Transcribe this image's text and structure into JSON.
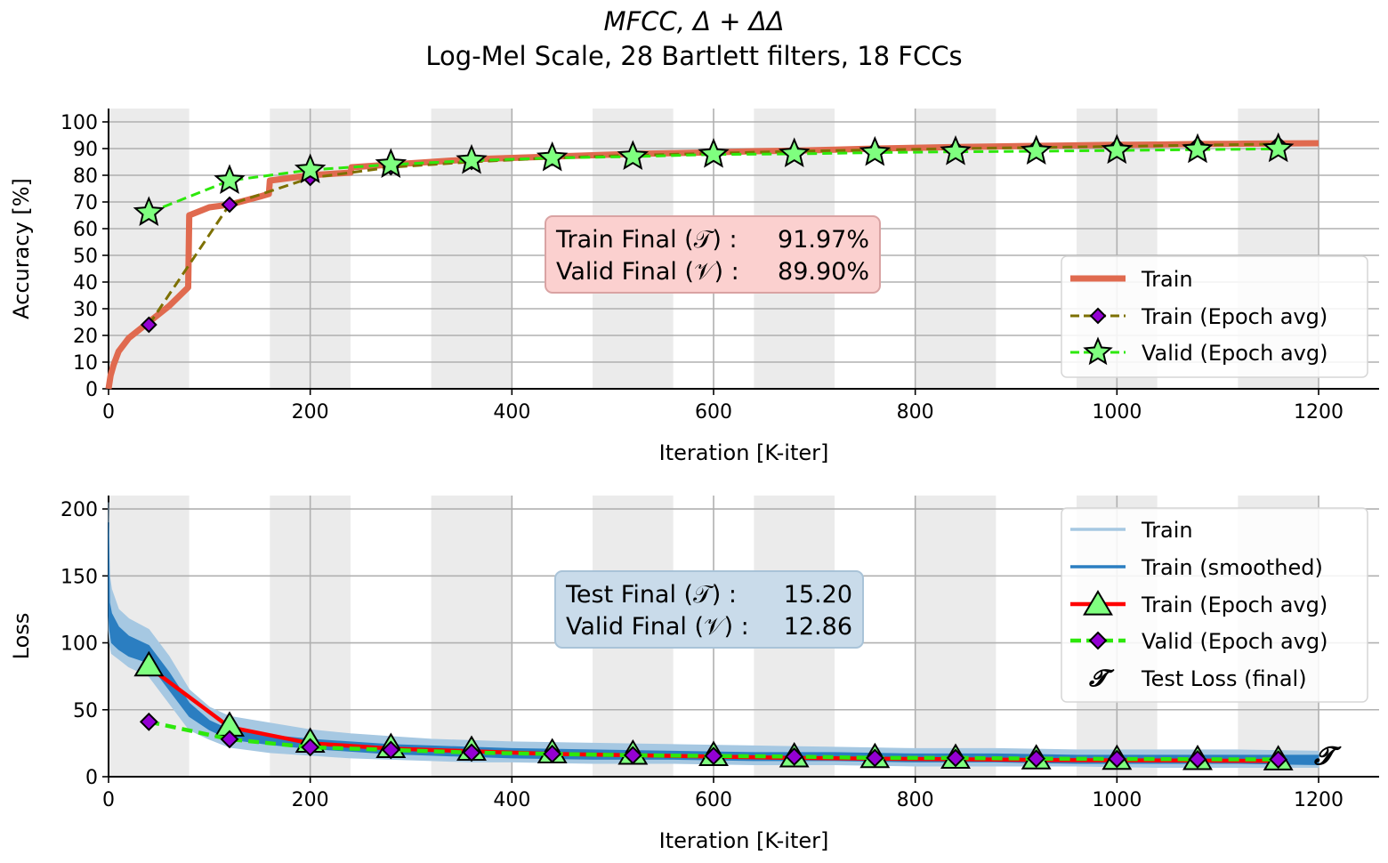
{
  "figure": {
    "title_line1": "MFCC, Δ + ΔΔ",
    "title_line2": "Log-Mel Scale, 28 Bartlett filters, 18 FCCs"
  },
  "chart_data": [
    {
      "type": "line",
      "ylabel": "Accuracy [%]",
      "xlabel": "Iteration [K-iter]",
      "xlim": [
        0,
        1260
      ],
      "ylim": [
        0,
        105
      ],
      "xticks": [
        "0",
        "200",
        "400",
        "600",
        "800",
        "1000",
        "1200"
      ],
      "yticks": [
        "0",
        "10",
        "20",
        "30",
        "40",
        "50",
        "60",
        "70",
        "80",
        "90",
        "100"
      ],
      "grid": true,
      "epoch_length": 80,
      "legend_position": "lower-right",
      "legend": [
        "Train",
        "Train (Epoch avg)",
        "Valid (Epoch avg)"
      ],
      "annotation": {
        "line1_label": "Train Final (𝒯) :",
        "line1_value": "91.97%",
        "line2_label": "Valid Final (𝒱) :",
        "line2_value": "89.90%"
      },
      "series": [
        {
          "name": "Train",
          "color": "#e06a4f",
          "x": [
            0,
            2,
            5,
            10,
            20,
            30,
            40,
            60,
            79,
            80,
            100,
            120,
            150,
            159,
            160,
            200,
            240,
            241,
            280,
            320,
            360,
            400,
            440,
            480,
            520,
            560,
            600,
            640,
            680,
            720,
            760,
            800,
            840,
            880,
            920,
            960,
            1000,
            1040,
            1080,
            1120,
            1160,
            1200
          ],
          "y": [
            0,
            5,
            9,
            14,
            19,
            22,
            25,
            31,
            38,
            65,
            68,
            69,
            72,
            73,
            78,
            80,
            81,
            83,
            84,
            85,
            86,
            86.5,
            87,
            87.5,
            88,
            88.3,
            88.6,
            89,
            89.2,
            89.6,
            90,
            90.3,
            90.6,
            90.8,
            91,
            91.2,
            91.4,
            91.5,
            91.7,
            91.8,
            91.9,
            92
          ]
        },
        {
          "name": "Train (Epoch avg)",
          "color": "#7d7000",
          "marker_color": "#9400d3",
          "x": [
            40,
            120,
            200,
            280,
            360,
            440,
            520,
            600,
            680,
            760,
            840,
            920,
            1000,
            1080,
            1160
          ],
          "y": [
            24,
            69,
            79,
            83,
            85,
            86.5,
            87.5,
            88.2,
            89,
            89.5,
            90,
            90.4,
            90.8,
            91.3,
            91.7
          ]
        },
        {
          "name": "Valid (Epoch avg)",
          "color": "#2de80b",
          "marker_color": "#7fff7f",
          "x": [
            40,
            120,
            200,
            280,
            360,
            440,
            520,
            600,
            680,
            760,
            840,
            920,
            1000,
            1080,
            1160
          ],
          "y": [
            66,
            78,
            82,
            84,
            85.5,
            86.5,
            87,
            87.8,
            88,
            88.5,
            88.8,
            89,
            89.3,
            89.6,
            89.9
          ]
        }
      ]
    },
    {
      "type": "line",
      "ylabel": "Loss",
      "xlabel": "Iteration [K-iter]",
      "xlim": [
        0,
        1260
      ],
      "ylim": [
        0,
        210
      ],
      "xticks": [
        "0",
        "200",
        "400",
        "600",
        "800",
        "1000",
        "1200"
      ],
      "yticks": [
        "0",
        "50",
        "100",
        "150",
        "200"
      ],
      "grid": true,
      "epoch_length": 80,
      "legend_position": "upper-right",
      "legend": [
        "Train",
        "Train (smoothed)",
        "Train (Epoch avg)",
        "Valid (Epoch avg)",
        "Test Loss (final)"
      ],
      "annotation": {
        "line1_label": "Test Final (𝒯) :",
        "line1_value": "15.20",
        "line2_label": "Valid Final (𝒱) :",
        "line2_value": "12.86"
      },
      "series": [
        {
          "name": "Train",
          "color": "#a6c8e2",
          "x": [
            0,
            1,
            3,
            10,
            20,
            40,
            60,
            80,
            100,
            120,
            160,
            200,
            240,
            280,
            320,
            360,
            400,
            480,
            560,
            640,
            720,
            800,
            880,
            960,
            1040,
            1120,
            1200
          ],
          "y_upper": [
            205,
            150,
            140,
            125,
            118,
            110,
            90,
            65,
            52,
            45,
            40,
            35,
            32,
            30,
            28,
            27,
            26,
            25,
            24,
            23,
            22,
            21,
            21,
            20,
            20,
            20,
            19
          ],
          "y_lower": [
            110,
            100,
            92,
            88,
            82,
            75,
            55,
            35,
            28,
            22,
            18,
            16,
            14,
            13,
            12,
            11,
            11,
            10,
            10,
            9,
            9,
            8,
            8,
            8,
            7,
            7,
            7
          ]
        },
        {
          "name": "Train (smoothed)",
          "color": "#2b7ec1",
          "x": [
            0,
            1,
            3,
            10,
            20,
            40,
            60,
            80,
            100,
            120,
            160,
            200,
            240,
            280,
            320,
            360,
            400,
            480,
            560,
            640,
            720,
            800,
            880,
            960,
            1040,
            1120,
            1200
          ],
          "y_upper": [
            190,
            130,
            122,
            112,
            105,
            98,
            78,
            55,
            42,
            35,
            31,
            28,
            26,
            24,
            23,
            22,
            21,
            20,
            19,
            18,
            18,
            17,
            17,
            16,
            16,
            16,
            16
          ],
          "y_lower": [
            120,
            110,
            100,
            95,
            90,
            85,
            65,
            45,
            35,
            28,
            24,
            21,
            19,
            17,
            16,
            15,
            14,
            13,
            13,
            12,
            12,
            11,
            11,
            10,
            10,
            10,
            9
          ]
        },
        {
          "name": "Train (Epoch avg)",
          "color": "#ff0000",
          "marker_color": "#7fff7f",
          "x": [
            40,
            120,
            200,
            280,
            360,
            440,
            520,
            600,
            680,
            760,
            840,
            920,
            1000,
            1080,
            1160
          ],
          "y": [
            82,
            37,
            25,
            21,
            19,
            17,
            16,
            15,
            14,
            13.5,
            13,
            12.5,
            12.2,
            12,
            11.8
          ]
        },
        {
          "name": "Valid (Epoch avg)",
          "color": "#2de80b",
          "marker_color": "#9400d3",
          "x": [
            40,
            120,
            200,
            280,
            360,
            440,
            520,
            600,
            680,
            760,
            840,
            920,
            1000,
            1080,
            1160
          ],
          "y": [
            41,
            28,
            22,
            20,
            18,
            17,
            16,
            15.5,
            15,
            14,
            14,
            13.5,
            13.3,
            13,
            12.86
          ]
        },
        {
          "name": "Test Loss (final)",
          "color": "#000000",
          "marker": "𝓣",
          "x": [
            1205
          ],
          "y": [
            15.2
          ]
        }
      ]
    }
  ]
}
